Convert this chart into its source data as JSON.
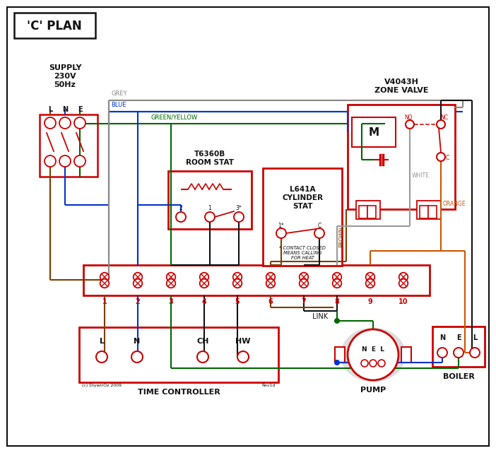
{
  "title": "'C' PLAN",
  "supply_label": "SUPPLY\n230V\n50Hz",
  "lne": [
    "L",
    "N",
    "E"
  ],
  "zone_valve_label": "V4043H\nZONE VALVE",
  "room_stat_label": "T6360B\nROOM STAT",
  "cyl_stat_label": "L641A\nCYLINDER\nSTAT",
  "tc_label": "TIME CONTROLLER",
  "pump_label": "PUMP",
  "boiler_label": "BOILER",
  "terminals": [
    "1",
    "2",
    "3",
    "4",
    "5",
    "6",
    "7",
    "8",
    "9",
    "10"
  ],
  "tc_terms": [
    "L",
    "N",
    "CH",
    "HW"
  ],
  "link_label": "LINK",
  "footnote": "* CONTACT CLOSED\nMEANS CALLING\nFOR HEAT",
  "copyright": "(c) DiywirOz 2009",
  "revision": "Rev1d",
  "grey_label": "GREY",
  "blue_label": "BLUE",
  "gy_label": "GREEN/YELLOW",
  "brown_label": "BROWN",
  "white_label": "WHITE",
  "orange_label": "ORANGE",
  "no_label": "NO",
  "nc_label": "NC",
  "c_label": "C",
  "m_label": "M",
  "nel_pump": "N  E  L",
  "nel_boiler": "N  E  L",
  "colors": {
    "red": "#cc0000",
    "blue": "#0033cc",
    "green": "#006600",
    "grey": "#888888",
    "brown": "#7B3F00",
    "orange": "#cc5500",
    "black": "#111111",
    "white_wire": "#999999",
    "bg": "#ffffff",
    "dkblue": "#000033"
  }
}
